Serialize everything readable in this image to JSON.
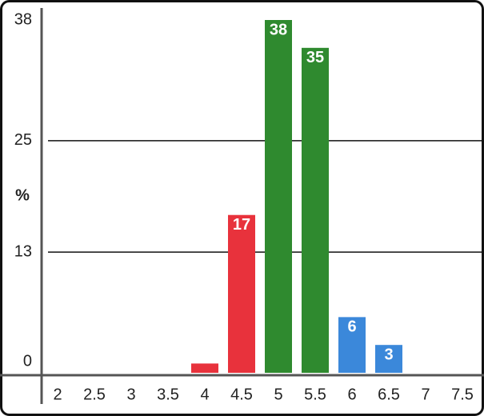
{
  "chart_data": {
    "type": "bar",
    "y_label": "%",
    "categories": [
      "2",
      "2.5",
      "3",
      "3.5",
      "4",
      "4.5",
      "5",
      "5.5",
      "6",
      "6.5",
      "7",
      "7.5"
    ],
    "values": [
      null,
      null,
      null,
      null,
      1,
      17,
      38,
      35,
      6,
      3,
      null,
      null
    ],
    "colors": [
      null,
      null,
      null,
      null,
      "#e8323c",
      "#e8323c",
      "#2f8a2f",
      "#2f8a2f",
      "#3b88da",
      "#3b88da",
      null,
      null
    ],
    "ylim": [
      0,
      38
    ],
    "yticks": [
      0,
      13,
      25,
      38
    ],
    "grid": true
  }
}
